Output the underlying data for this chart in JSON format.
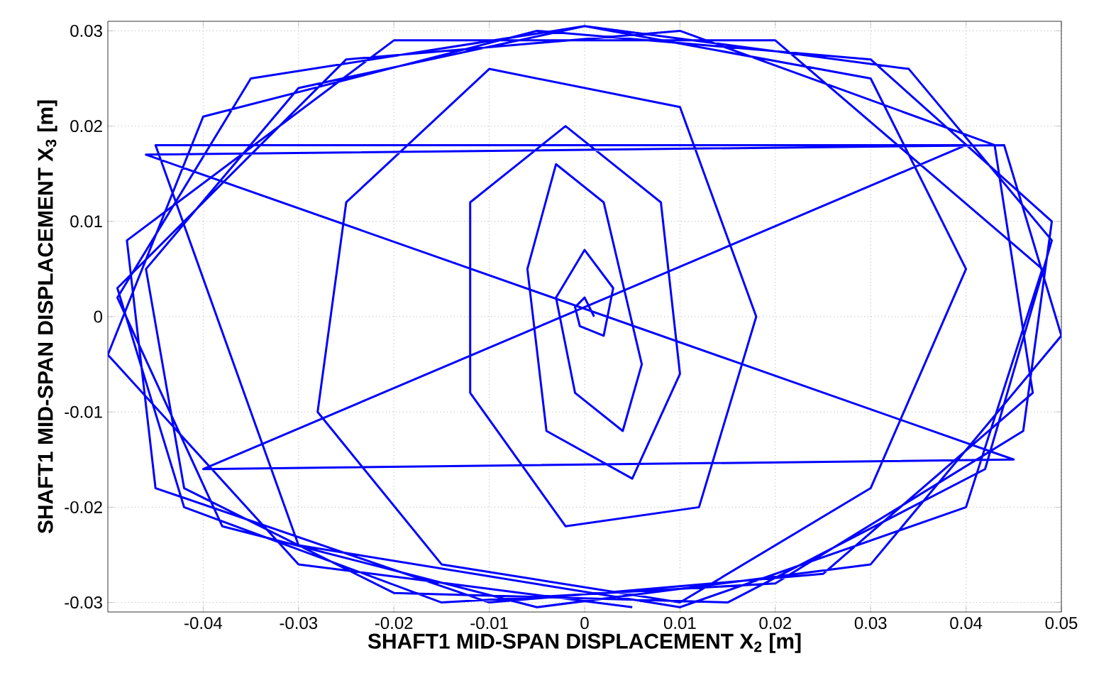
{
  "chart_data": {
    "type": "line",
    "xlabel": "SHAFT1 MID-SPAN DISPLACEMENT X$_{2}$ [m]",
    "ylabel": "SHAFT1 MID-SPAN DISPLACEMENT X$_{3}$ [m]",
    "xlim": [
      -0.05,
      0.05
    ],
    "ylim": [
      -0.031,
      0.031
    ],
    "xticks": [
      -0.04,
      -0.03,
      -0.02,
      -0.01,
      0,
      0.01,
      0.02,
      0.03,
      0.04,
      0.05
    ],
    "yticks": [
      -0.03,
      -0.02,
      -0.01,
      0,
      0.01,
      0.02,
      0.03
    ],
    "grid": true,
    "line_style": "solid",
    "series": [
      {
        "color": "#0000ff",
        "x": [
          0.001,
          0.0,
          -0.001,
          -0.0005,
          0.002,
          0.003,
          0.0,
          -0.003,
          -0.001,
          0.004,
          0.006,
          0.002,
          -0.003,
          -0.006,
          -0.004,
          0.005,
          0.01,
          0.008,
          -0.002,
          -0.012,
          -0.012,
          -0.002,
          0.012,
          0.018,
          0.01,
          -0.01,
          -0.025,
          -0.028,
          -0.015,
          0.01,
          0.03,
          0.04,
          0.03,
          0.0,
          -0.03,
          -0.046,
          -0.042,
          -0.02,
          0.015,
          0.042,
          0.049,
          0.034,
          0.0,
          -0.035,
          -0.049,
          -0.038,
          -0.005,
          0.03,
          0.05,
          0.044,
          -0.046,
          0.045,
          -0.04,
          0.04,
          -0.045,
          -0.03,
          0.01,
          0.04,
          0.048,
          0.02,
          -0.02,
          -0.048,
          -0.045,
          -0.01,
          0.025,
          0.047,
          0.043,
          0.01,
          -0.025,
          -0.049,
          -0.042,
          -0.015,
          0.02,
          0.046,
          0.049,
          0.03,
          -0.005,
          -0.04,
          -0.05,
          -0.03,
          0.005
        ],
        "values": [
          0.0,
          0.002,
          0.001,
          -0.001,
          -0.002,
          0.003,
          0.007,
          0.002,
          -0.008,
          -0.012,
          -0.005,
          0.012,
          0.016,
          0.005,
          -0.012,
          -0.017,
          -0.006,
          0.012,
          0.02,
          0.012,
          -0.008,
          -0.022,
          -0.02,
          0.0,
          0.022,
          0.026,
          0.012,
          -0.01,
          -0.026,
          -0.03,
          -0.018,
          0.005,
          0.025,
          0.0305,
          0.024,
          0.005,
          -0.018,
          -0.029,
          -0.03,
          -0.016,
          0.008,
          0.026,
          0.0305,
          0.025,
          0.002,
          -0.022,
          -0.0305,
          -0.026,
          -0.002,
          0.018,
          0.017,
          -0.015,
          -0.016,
          0.018,
          0.018,
          -0.024,
          -0.0305,
          -0.02,
          0.005,
          0.029,
          0.029,
          0.008,
          -0.018,
          -0.03,
          -0.027,
          -0.008,
          0.018,
          0.03,
          0.027,
          0.003,
          -0.02,
          -0.03,
          -0.028,
          -0.012,
          0.01,
          0.027,
          0.03,
          0.021,
          -0.004,
          -0.026,
          -0.0305
        ]
      }
    ]
  }
}
